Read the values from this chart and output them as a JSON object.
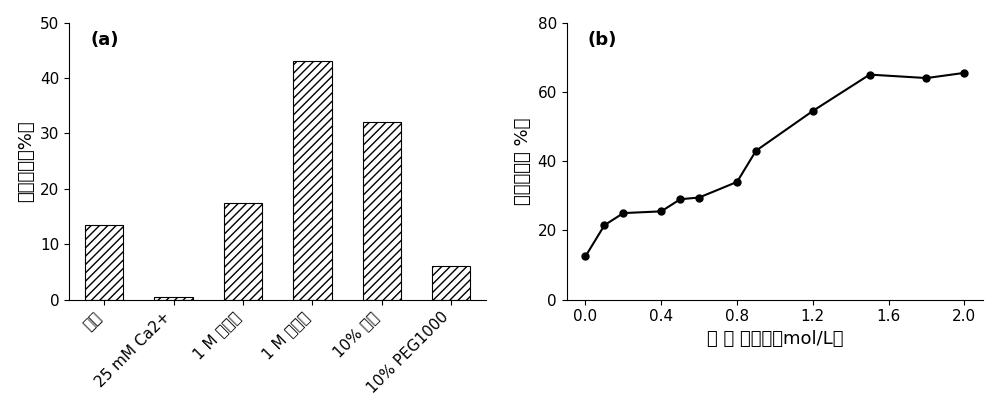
{
  "bar_categories": [
    "对照",
    "25 mM Ca2+",
    "1 M 甸氨酸",
    "1 M 山梨醇",
    "10% 甸油",
    "10% PEG1000"
  ],
  "bar_values": [
    13.5,
    0.5,
    17.5,
    43.0,
    32.0,
    6.0
  ],
  "bar_ylabel": "残余酶活（%）",
  "bar_ylim": [
    0,
    50
  ],
  "bar_yticks": [
    0,
    10,
    20,
    30,
    40,
    50
  ],
  "bar_label": "(a)",
  "line_x": [
    0.0,
    0.1,
    0.2,
    0.4,
    0.5,
    0.6,
    0.8,
    0.9,
    1.2,
    1.5,
    1.8,
    2.0
  ],
  "line_y": [
    12.5,
    21.5,
    25.0,
    25.5,
    29.0,
    29.5,
    34.0,
    43.0,
    54.5,
    65.0,
    64.0,
    65.5
  ],
  "line_ylabel": "残余酶活（ %）",
  "line_xlabel": "山 梨 醇浓度（mol/L）",
  "line_ylim": [
    0,
    80
  ],
  "line_yticks": [
    0,
    20,
    40,
    60,
    80
  ],
  "line_xticks": [
    0.0,
    0.4,
    0.8,
    1.2,
    1.6,
    2.0
  ],
  "line_label": "(b)",
  "hatch_pattern": "////",
  "bar_color": "white",
  "bar_edgecolor": "black",
  "line_color": "black",
  "marker": "o",
  "marker_size": 5,
  "marker_facecolor": "black",
  "background_color": "white",
  "fontsize_label": 13,
  "fontsize_tick": 11,
  "fontsize_panel": 13
}
